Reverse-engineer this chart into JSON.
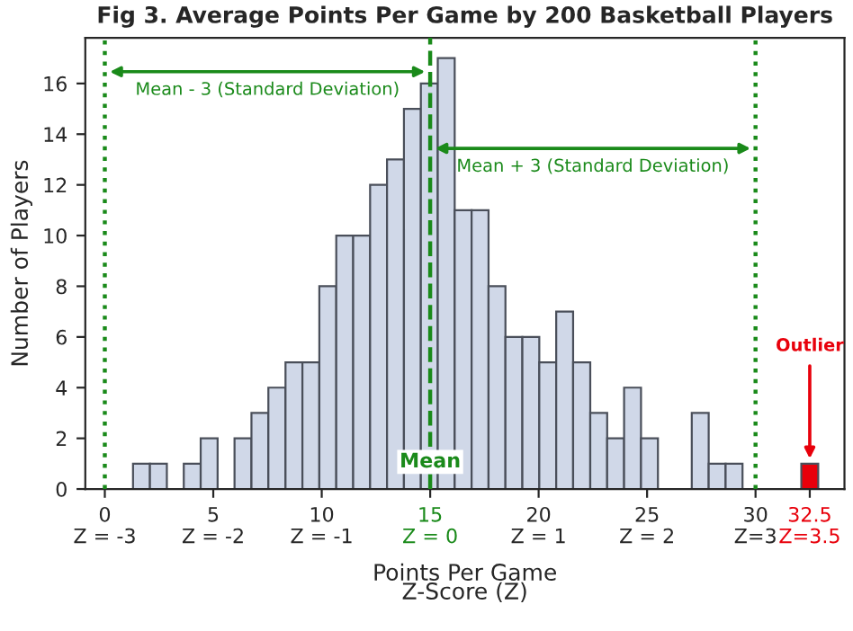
{
  "chart_data": {
    "type": "histogram",
    "title": "Fig 3. Average Points Per Game by 200 Basketball Players",
    "xlabel": "Points Per Game",
    "x2label": "Z-Score (Z)",
    "ylabel": "Number of Players",
    "series": [
      {
        "color": "#d0d8e8",
        "bins": [
          1.3,
          2.08,
          2.86,
          3.64,
          4.42,
          5.2,
          5.98,
          6.76,
          7.54,
          8.33,
          9.11,
          9.89,
          10.67,
          11.45,
          12.23,
          13.01,
          13.79,
          14.57,
          15.35,
          16.13,
          16.91,
          17.69,
          18.47,
          19.25,
          20.03,
          20.81,
          21.59,
          22.38,
          23.16,
          23.94,
          24.72,
          25.5,
          26.28,
          27.06,
          27.84,
          28.62,
          29.4
        ],
        "values": [
          1,
          1,
          0,
          1,
          2,
          0,
          2,
          3,
          4,
          5,
          5,
          8,
          10,
          10,
          12,
          13,
          15,
          16,
          17,
          11,
          11,
          8,
          6,
          6,
          5,
          7,
          5,
          3,
          2,
          4,
          2,
          0,
          0,
          3,
          1,
          1
        ]
      },
      {
        "type": "bar",
        "color": "#e8000b",
        "x": [
          32.5
        ],
        "values": [
          1
        ]
      }
    ],
    "xlim": [
      -0.9,
      34.1
    ],
    "ylim": [
      0,
      17.8
    ],
    "xticks": [
      0,
      5,
      10,
      15,
      20,
      25,
      30,
      32.5
    ],
    "x2lim": [
      -3.18,
      3.82
    ],
    "x2ticks": [
      {
        "value": -3,
        "label": "Z = -3"
      },
      {
        "value": -2,
        "label": "Z = -2"
      },
      {
        "value": -1,
        "label": "Z = -1"
      },
      {
        "value": 0,
        "label": "Z = 0"
      },
      {
        "value": 1,
        "label": "Z = 1"
      },
      {
        "value": 2,
        "label": "Z = 2"
      },
      {
        "value": 3,
        "label": "Z=3"
      },
      {
        "value": 3.5,
        "label": "Z=3.5"
      }
    ],
    "yticks": [
      0,
      2,
      4,
      6,
      8,
      10,
      12,
      14,
      16
    ],
    "ref_lines": [
      {
        "axis": "x",
        "value": 0,
        "color": "#1a8a1a",
        "line_style": "dotted"
      },
      {
        "axis": "x",
        "value": 15,
        "label": "Mean",
        "color": "#1a8a1a",
        "line_style": "dashed"
      },
      {
        "axis": "x",
        "value": 30,
        "color": "#1a8a1a",
        "line_style": "dotted"
      }
    ],
    "annotations": [
      "Mean - 3 (Standard Deviation)",
      "Mean + 3 (Standard Deviation)",
      {
        "text": "Outlier",
        "x": 32.5,
        "y": 1
      }
    ],
    "grid": false,
    "legend": false
  }
}
